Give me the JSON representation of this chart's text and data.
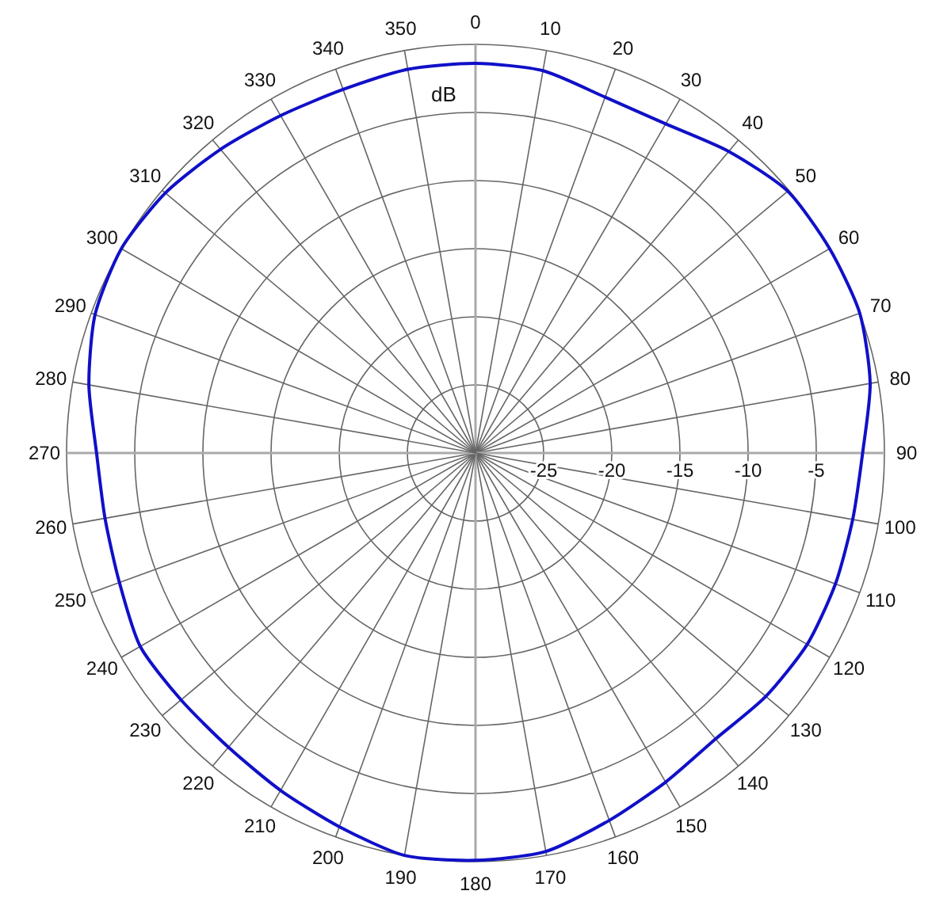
{
  "chart_data": {
    "type": "radar",
    "ylabel": "dB",
    "categories": [
      "0",
      "10",
      "20",
      "30",
      "40",
      "50",
      "60",
      "70",
      "80",
      "90",
      "100",
      "110",
      "120",
      "130",
      "140",
      "150",
      "160",
      "170",
      "180",
      "190",
      "200",
      "210",
      "220",
      "230",
      "240",
      "250",
      "260",
      "270",
      "280",
      "290",
      "300",
      "310",
      "320",
      "330",
      "340",
      "350"
    ],
    "ylim": [
      -30,
      0
    ],
    "yticks": [
      -25,
      -20,
      -15,
      -10,
      -5
    ],
    "grid": true,
    "marker": "none",
    "line_style": "solid",
    "series": [
      {
        "color": "#1010c8",
        "values": [
          -1.4,
          -1.5,
          -2.2,
          -2.1,
          -1.1,
          -0.1,
          0,
          0,
          -0.6,
          -1.6,
          -1.9,
          -1.9,
          -1.9,
          -2.2,
          -2.6,
          -2.1,
          -1.3,
          -0.3,
          -0.1,
          0,
          -0.8,
          -1.4,
          -1.8,
          -1.8,
          -1.6,
          -2.2,
          -2.4,
          -2.2,
          -1.2,
          -0.3,
          0,
          -0.3,
          -0.9,
          -1.4,
          -1.6,
          -1.4
        ]
      }
    ]
  }
}
